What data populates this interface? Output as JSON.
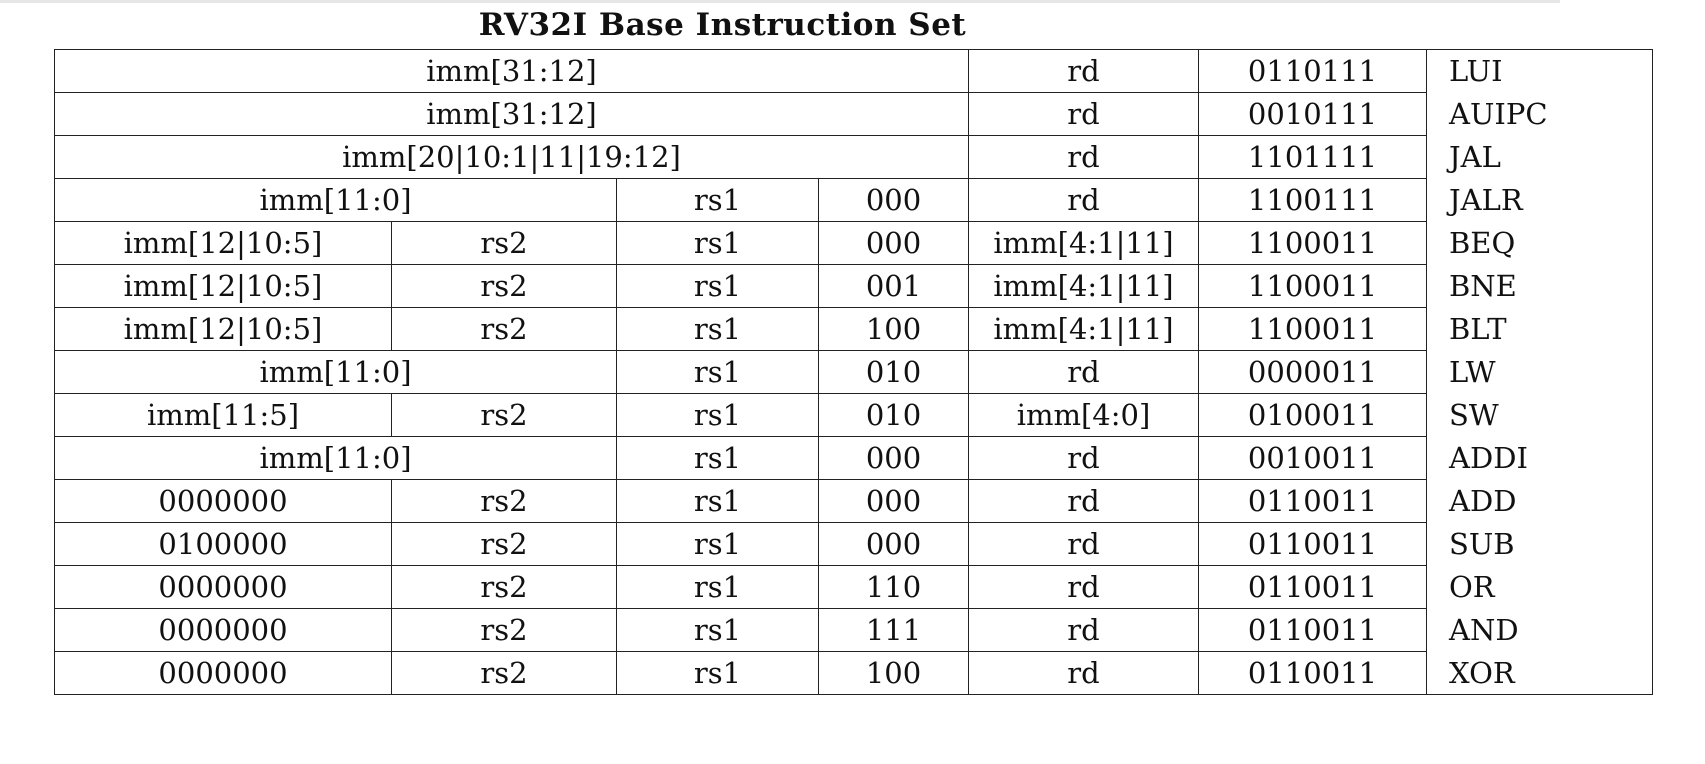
{
  "document": {
    "title": "RV32I Base Instruction Set"
  },
  "instructions": [
    {
      "fields": [
        {
          "text": "imm[31:12]",
          "span": 5
        },
        {
          "text": "rd",
          "span": 1
        },
        {
          "text": "0110111",
          "span": 1
        }
      ],
      "mnemonic": "LUI"
    },
    {
      "fields": [
        {
          "text": "imm[31:12]",
          "span": 5
        },
        {
          "text": "rd",
          "span": 1
        },
        {
          "text": "0010111",
          "span": 1
        }
      ],
      "mnemonic": "AUIPC"
    },
    {
      "fields": [
        {
          "text": "imm[20|10:1|11|19:12]",
          "span": 5
        },
        {
          "text": "rd",
          "span": 1
        },
        {
          "text": "1101111",
          "span": 1
        }
      ],
      "mnemonic": "JAL"
    },
    {
      "fields": [
        {
          "text": "imm[11:0]",
          "span": 3
        },
        {
          "text": "rs1",
          "span": 1
        },
        {
          "text": "000",
          "span": 1
        },
        {
          "text": "rd",
          "span": 1
        },
        {
          "text": "1100111",
          "span": 1
        }
      ],
      "mnemonic": "JALR"
    },
    {
      "fields": [
        {
          "text": "imm[12|10:5]",
          "span": 1
        },
        {
          "text": "rs2",
          "span": 2
        },
        {
          "text": "rs1",
          "span": 1
        },
        {
          "text": "000",
          "span": 1
        },
        {
          "text": "imm[4:1|11]",
          "span": 1
        },
        {
          "text": "1100011",
          "span": 1
        }
      ],
      "mnemonic": "BEQ"
    },
    {
      "fields": [
        {
          "text": "imm[12|10:5]",
          "span": 1
        },
        {
          "text": "rs2",
          "span": 2
        },
        {
          "text": "rs1",
          "span": 1
        },
        {
          "text": "001",
          "span": 1
        },
        {
          "text": "imm[4:1|11]",
          "span": 1
        },
        {
          "text": "1100011",
          "span": 1
        }
      ],
      "mnemonic": "BNE"
    },
    {
      "fields": [
        {
          "text": "imm[12|10:5]",
          "span": 1
        },
        {
          "text": "rs2",
          "span": 2
        },
        {
          "text": "rs1",
          "span": 1
        },
        {
          "text": "100",
          "span": 1
        },
        {
          "text": "imm[4:1|11]",
          "span": 1
        },
        {
          "text": "1100011",
          "span": 1
        }
      ],
      "mnemonic": "BLT"
    },
    {
      "fields": [
        {
          "text": "imm[11:0]",
          "span": 3
        },
        {
          "text": "rs1",
          "span": 1
        },
        {
          "text": "010",
          "span": 1
        },
        {
          "text": "rd",
          "span": 1
        },
        {
          "text": "0000011",
          "span": 1
        }
      ],
      "mnemonic": "LW"
    },
    {
      "fields": [
        {
          "text": "imm[11:5]",
          "span": 1
        },
        {
          "text": "rs2",
          "span": 2
        },
        {
          "text": "rs1",
          "span": 1
        },
        {
          "text": "010",
          "span": 1
        },
        {
          "text": "imm[4:0]",
          "span": 1
        },
        {
          "text": "0100011",
          "span": 1
        }
      ],
      "mnemonic": "SW"
    },
    {
      "fields": [
        {
          "text": "imm[11:0]",
          "span": 3
        },
        {
          "text": "rs1",
          "span": 1
        },
        {
          "text": "000",
          "span": 1
        },
        {
          "text": "rd",
          "span": 1
        },
        {
          "text": "0010011",
          "span": 1
        }
      ],
      "mnemonic": "ADDI"
    },
    {
      "fields": [
        {
          "text": "0000000",
          "span": 1
        },
        {
          "text": "rs2",
          "span": 2
        },
        {
          "text": "rs1",
          "span": 1
        },
        {
          "text": "000",
          "span": 1
        },
        {
          "text": "rd",
          "span": 1
        },
        {
          "text": "0110011",
          "span": 1
        }
      ],
      "mnemonic": "ADD"
    },
    {
      "fields": [
        {
          "text": "0100000",
          "span": 1
        },
        {
          "text": "rs2",
          "span": 2
        },
        {
          "text": "rs1",
          "span": 1
        },
        {
          "text": "000",
          "span": 1
        },
        {
          "text": "rd",
          "span": 1
        },
        {
          "text": "0110011",
          "span": 1
        }
      ],
      "mnemonic": "SUB"
    },
    {
      "fields": [
        {
          "text": "0000000",
          "span": 1
        },
        {
          "text": "rs2",
          "span": 2
        },
        {
          "text": "rs1",
          "span": 1
        },
        {
          "text": "110",
          "span": 1
        },
        {
          "text": "rd",
          "span": 1
        },
        {
          "text": "0110011",
          "span": 1
        }
      ],
      "mnemonic": "OR"
    },
    {
      "fields": [
        {
          "text": "0000000",
          "span": 1
        },
        {
          "text": "rs2",
          "span": 2
        },
        {
          "text": "rs1",
          "span": 1
        },
        {
          "text": "111",
          "span": 1
        },
        {
          "text": "rd",
          "span": 1
        },
        {
          "text": "0110011",
          "span": 1
        }
      ],
      "mnemonic": "AND"
    },
    {
      "fields": [
        {
          "text": "0000000",
          "span": 1
        },
        {
          "text": "rs2",
          "span": 2
        },
        {
          "text": "rs1",
          "span": 1
        },
        {
          "text": "100",
          "span": 1
        },
        {
          "text": "rd",
          "span": 1
        },
        {
          "text": "0110011",
          "span": 1
        }
      ],
      "mnemonic": "XOR"
    }
  ]
}
